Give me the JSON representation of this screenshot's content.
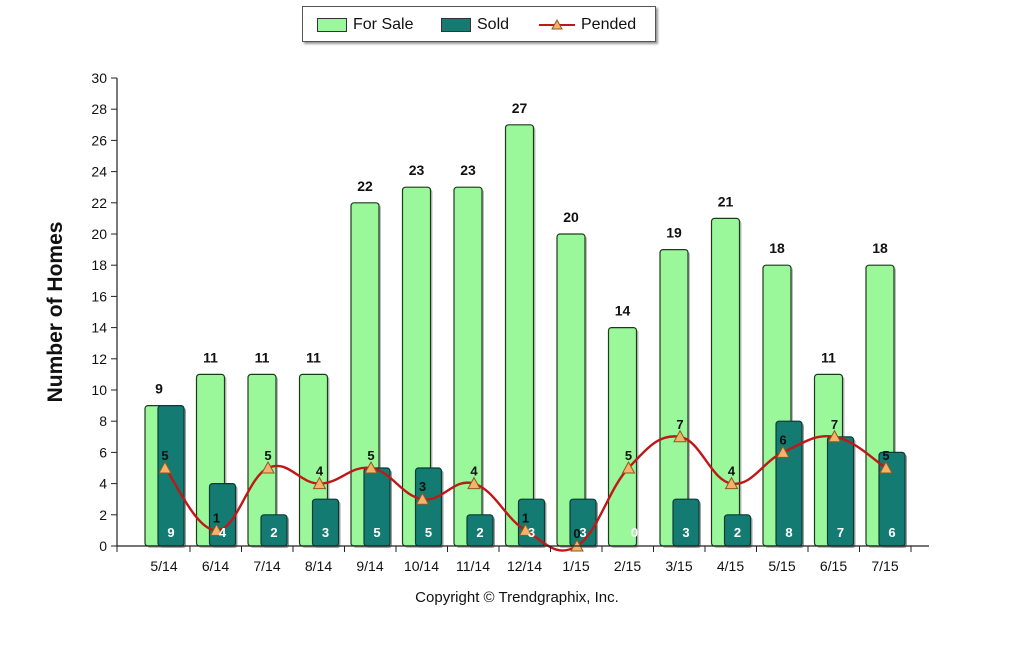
{
  "chart_data": {
    "type": "bar",
    "categories": [
      "5/14",
      "6/14",
      "7/14",
      "8/14",
      "9/14",
      "10/14",
      "11/14",
      "12/14",
      "1/15",
      "2/15",
      "3/15",
      "4/15",
      "5/15",
      "6/15",
      "7/15"
    ],
    "series": [
      {
        "name": "For Sale",
        "type": "bar",
        "color": "#9af79a",
        "values": [
          9,
          11,
          11,
          11,
          22,
          23,
          23,
          27,
          20,
          14,
          19,
          21,
          18,
          11,
          18
        ]
      },
      {
        "name": "Sold",
        "type": "bar",
        "color": "#137b72",
        "values": [
          9,
          4,
          2,
          3,
          5,
          5,
          2,
          3,
          3,
          0,
          3,
          2,
          8,
          7,
          6
        ]
      },
      {
        "name": "Pended",
        "type": "line",
        "color": "#c01818",
        "marker_color": "#f5b26b",
        "values": [
          5,
          1,
          5,
          4,
          5,
          3,
          4,
          1,
          0,
          5,
          7,
          4,
          6,
          7,
          5
        ]
      }
    ],
    "ylabel": "Number of Homes",
    "ylim": [
      0,
      30
    ],
    "yticks": [
      0,
      2,
      4,
      6,
      8,
      10,
      12,
      14,
      16,
      18,
      20,
      22,
      24,
      26,
      28,
      30
    ],
    "legend_position": "top-center",
    "grid": false
  },
  "legend": {
    "for_sale": "For Sale",
    "sold": "Sold",
    "pended": "Pended"
  },
  "footer": "Copyright © Trendgraphix, Inc."
}
